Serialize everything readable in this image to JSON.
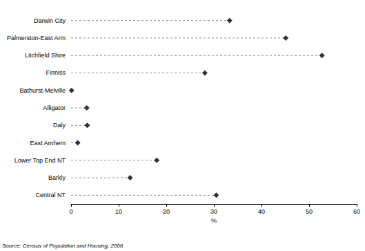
{
  "chart_data": {
    "type": "dot",
    "orientation": "horizontal",
    "x_label": "%",
    "annotations": [
      "Source: Census of Population and Housing, 2006"
    ],
    "categories": [
      "Darwin City",
      "Palmerston-East Arm",
      "Litchfield Shire",
      "Finniss",
      "Bathurst-Melville",
      "Alligator",
      "Daly",
      "East Arnhem",
      "Lower Top End NT",
      "Barkly",
      "Central NT"
    ],
    "values": [
      33.3,
      45.1,
      52.7,
      28.1,
      0.1,
      3.3,
      3.4,
      1.4,
      18.0,
      12.4,
      30.5
    ],
    "color": "#000000",
    "marker": "diamond",
    "line_style": "dashed",
    "xlim": [
      0,
      60
    ],
    "xticks": [
      0,
      10,
      20,
      30,
      40,
      50,
      60
    ],
    "grid": false
  }
}
